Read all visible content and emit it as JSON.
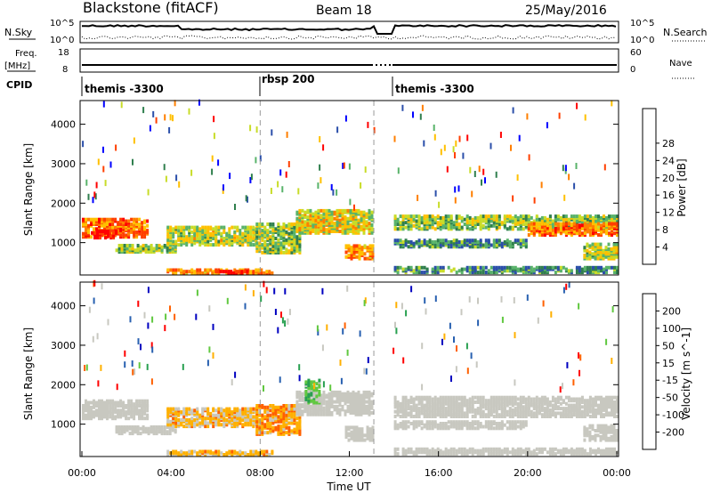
{
  "header": {
    "station": "Blackstone (fitACF)",
    "beam": "Beam 18",
    "date": "25/May/2016"
  },
  "top_panels": {
    "nsky_label": "N.Sky",
    "nsky_ticks": [
      "10^5",
      "10^0"
    ],
    "nsearch_label": "N.Search",
    "freq_label": "Freq.",
    "freq_unit": "[MHz]",
    "freq_ticks": [
      "18",
      "8"
    ],
    "nave_label": "Nave",
    "nave_ticks": [
      "60",
      "0"
    ],
    "cpid_label": "CPID",
    "cpid_segments": [
      {
        "label": "themis -3300",
        "start_hour": 0,
        "end_hour": 8
      },
      {
        "label": "rbsp 200",
        "start_hour": 8,
        "end_hour": 13.1
      },
      {
        "label": "themis -3300",
        "start_hour": 13.9,
        "end_hour": 24
      }
    ]
  },
  "colors": {
    "power_scale": [
      "#0000ff",
      "#2b4faa",
      "#307f4e",
      "#59b36a",
      "#c8dc28",
      "#ffc000",
      "#ff7f00",
      "#ff3f00",
      "#ff0000"
    ],
    "velocity_scale": [
      "#ff0000",
      "#ff6000",
      "#ffb000",
      "#c8c8c0",
      "#c8c8c0",
      "#60c840",
      "#28a050",
      "#2860b0",
      "#0000c0"
    ],
    "gap_marker": "#999999"
  },
  "chart_data": [
    {
      "type": "heatmap",
      "panel": "power",
      "xlabel": "",
      "ylabel": "Slant Range [km]",
      "xlim": [
        0,
        24
      ],
      "ylim": [
        180,
        4600
      ],
      "yticks": [
        "1000",
        "2000",
        "3000",
        "4000"
      ],
      "colorbar_label": "Power [dB]",
      "colorbar_ticks": [
        "4",
        "8",
        "12",
        "16",
        "20",
        "24",
        "28"
      ],
      "data_gap_hours": [
        13.1,
        13.9
      ],
      "echo_bands": [
        {
          "t0": 0.0,
          "t1": 2.9,
          "r0": 1100,
          "r1": 1550,
          "level": 0.75
        },
        {
          "t0": 0.4,
          "t1": 1.6,
          "r0": 1080,
          "r1": 1250,
          "level": 0.95
        },
        {
          "t0": 1.5,
          "t1": 4.2,
          "r0": 720,
          "r1": 900,
          "level": 0.45
        },
        {
          "t0": 3.8,
          "t1": 7.8,
          "r0": 900,
          "r1": 1350,
          "level": 0.5
        },
        {
          "t0": 7.8,
          "t1": 9.8,
          "r0": 700,
          "r1": 1450,
          "level": 0.45
        },
        {
          "t0": 9.6,
          "t1": 13.0,
          "r0": 1200,
          "r1": 1800,
          "level": 0.55
        },
        {
          "t0": 11.8,
          "t1": 13.0,
          "r0": 550,
          "r1": 900,
          "level": 0.7
        },
        {
          "t0": 3.8,
          "t1": 8.6,
          "r0": 180,
          "r1": 300,
          "level": 0.7
        },
        {
          "t0": 5.8,
          "t1": 7.4,
          "r0": 180,
          "r1": 260,
          "level": 0.95
        },
        {
          "t0": 14.0,
          "t1": 24.0,
          "r0": 1300,
          "r1": 1650,
          "level": 0.45
        },
        {
          "t0": 14.0,
          "t1": 20.0,
          "r0": 850,
          "r1": 1050,
          "level": 0.3
        },
        {
          "t0": 20.0,
          "t1": 24.0,
          "r0": 1150,
          "r1": 1450,
          "level": 0.75
        },
        {
          "t0": 22.5,
          "t1": 24.0,
          "r0": 550,
          "r1": 950,
          "level": 0.5
        },
        {
          "t0": 14.0,
          "t1": 24.0,
          "r0": 200,
          "r1": 350,
          "level": 0.3
        }
      ]
    },
    {
      "type": "heatmap",
      "panel": "velocity",
      "xlabel": "Time UT",
      "ylabel": "Slant Range [km]",
      "xlim": [
        0,
        24
      ],
      "ylim": [
        180,
        4600
      ],
      "xticks": [
        "00:00",
        "04:00",
        "08:00",
        "12:00",
        "16:00",
        "20:00",
        "00:00"
      ],
      "yticks": [
        "1000",
        "2000",
        "3000",
        "4000"
      ],
      "colorbar_label": "Velocity [m s^-1]",
      "colorbar_ticks": [
        "200",
        "100",
        "50",
        "15",
        "-15",
        "-50",
        "-100",
        "-200"
      ],
      "data_gap_hours": [
        13.1,
        13.9
      ],
      "echo_bands": [
        {
          "t0": 0.0,
          "t1": 2.9,
          "r0": 1100,
          "r1": 1550,
          "level": 0.45
        },
        {
          "t0": 1.5,
          "t1": 4.2,
          "r0": 720,
          "r1": 900,
          "level": 0.45
        },
        {
          "t0": 3.8,
          "t1": 7.8,
          "r0": 900,
          "r1": 1350,
          "level": 0.3
        },
        {
          "t0": 7.8,
          "t1": 9.8,
          "r0": 700,
          "r1": 1450,
          "level": 0.25
        },
        {
          "t0": 9.6,
          "t1": 13.0,
          "r0": 1200,
          "r1": 1800,
          "level": 0.45
        },
        {
          "t0": 10.0,
          "t1": 10.6,
          "r0": 1500,
          "r1": 2100,
          "level": 0.62
        },
        {
          "t0": 11.8,
          "t1": 13.0,
          "r0": 550,
          "r1": 900,
          "level": 0.45
        },
        {
          "t0": 3.8,
          "t1": 8.6,
          "r0": 180,
          "r1": 300,
          "level": 0.3
        },
        {
          "t0": 14.0,
          "t1": 24.0,
          "r0": 1150,
          "r1": 1650,
          "level": 0.45
        },
        {
          "t0": 14.0,
          "t1": 20.0,
          "r0": 850,
          "r1": 1050,
          "level": 0.45
        },
        {
          "t0": 22.5,
          "t1": 24.0,
          "r0": 550,
          "r1": 950,
          "level": 0.45
        },
        {
          "t0": 14.0,
          "t1": 24.0,
          "r0": 200,
          "r1": 350,
          "level": 0.45
        }
      ]
    }
  ]
}
